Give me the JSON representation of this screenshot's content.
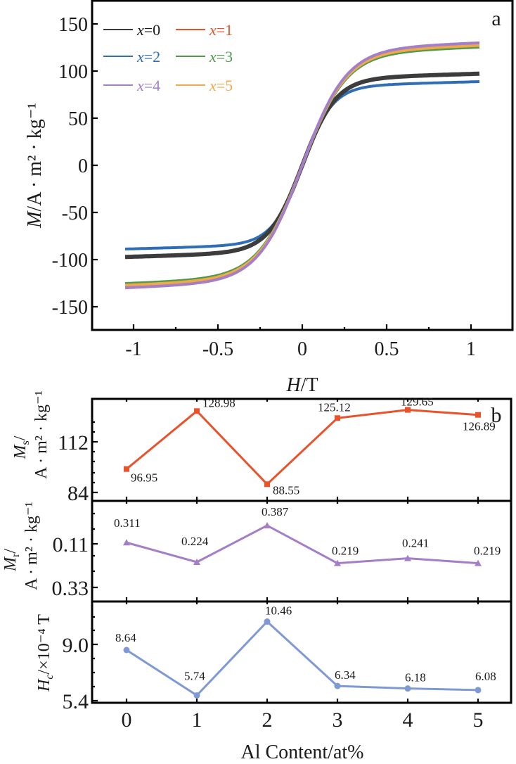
{
  "chart_data": [
    {
      "panel": "a",
      "type": "line",
      "title": "",
      "panel_label": "a",
      "xlabel_italic": "H",
      "xlabel_rest": "/T",
      "ylabel_italic": "M",
      "ylabel_rest": "/A · m² · kg⁻¹",
      "xlim": [
        -1.25,
        1.25
      ],
      "ylim": [
        -175,
        175
      ],
      "xticks": [
        -1,
        -0.5,
        0,
        0.5,
        1
      ],
      "xtick_labels": [
        "-1",
        "-0.5",
        "0",
        "0.5",
        "1"
      ],
      "yticks": [
        150,
        100,
        50,
        0,
        -50,
        -100,
        -150
      ],
      "ytick_labels": [
        "150",
        "100",
        "50",
        "0",
        "-50",
        "-100",
        "-150"
      ],
      "legend_position": "top-left",
      "x_range": [
        -1.05,
        1.05
      ],
      "series": [
        {
          "name": "x=0",
          "legend_var": "x",
          "legend_val": "=0",
          "color": "#3c3c3c",
          "Ms": 96.95,
          "knee": 0.2
        },
        {
          "name": "x=1",
          "legend_var": "x",
          "legend_val": "=1",
          "color": "#e8532b",
          "Ms": 128.98,
          "knee": 0.26
        },
        {
          "name": "x=2",
          "legend_var": "x",
          "legend_val": "=2",
          "color": "#2f6db5",
          "Ms": 88.55,
          "knee": 0.18
        },
        {
          "name": "x=3",
          "legend_var": "x",
          "legend_val": "=3",
          "color": "#4f9a4b",
          "Ms": 125.12,
          "knee": 0.26
        },
        {
          "name": "x=4",
          "legend_var": "x",
          "legend_val": "=4",
          "color": "#a47ec6",
          "Ms": 129.65,
          "knee": 0.26
        },
        {
          "name": "x=5",
          "legend_var": "x",
          "legend_val": "=5",
          "color": "#f0a94a",
          "Ms": 126.89,
          "knee": 0.26
        }
      ]
    },
    {
      "panel": "b",
      "type": "line",
      "panel_label": "b",
      "xlabel": "Al Content/at%",
      "categories": [
        0,
        1,
        2,
        3,
        4,
        5
      ],
      "xtick_labels": [
        "0",
        "1",
        "2",
        "3",
        "4",
        "5"
      ],
      "xlim": [
        -0.5,
        5.5
      ],
      "subplots": [
        {
          "name": "Ms",
          "ylabel_line1_italic": "M",
          "ylabel_line1_sub": "s",
          "ylabel_line1_rest": "/",
          "ylabel_line2": "A · m² · kg⁻¹",
          "color": "#e8532b",
          "marker": "square",
          "values": [
            96.95,
            128.98,
            88.55,
            125.12,
            129.65,
            126.89
          ],
          "labels": [
            "96.95",
            "128.98",
            "88.55",
            "125.12",
            "129.65",
            "126.89"
          ],
          "ylim": [
            82,
            140
          ],
          "yticks": [
            112,
            84
          ],
          "ytick_labels": [
            "112",
            "84"
          ]
        },
        {
          "name": "Mr",
          "ylabel_line1_italic": "M",
          "ylabel_line1_sub": "r",
          "ylabel_line1_rest": "/",
          "ylabel_line2": "A · m² · kg⁻¹",
          "color": "#a47ec6",
          "marker": "triangle",
          "values": [
            0.311,
            0.224,
            0.387,
            0.219,
            0.241,
            0.219
          ],
          "labels": [
            "0.311",
            "0.224",
            "0.387",
            "0.219",
            "0.241",
            "0.219"
          ],
          "ylim": [
            0.08,
            0.5
          ],
          "yticks": [
            "0.11",
            "0.33"
          ],
          "ytick_labels": [
            "0.11",
            "0.33"
          ]
        },
        {
          "name": "Hc",
          "ylabel_italic": "H",
          "ylabel_sub": "c",
          "ylabel_rest": "/×10⁻⁴ T",
          "color": "#7f99d4",
          "marker": "circle",
          "values": [
            8.64,
            5.74,
            10.46,
            6.34,
            6.18,
            6.08
          ],
          "labels": [
            "8.64",
            "5.74",
            "10.46",
            "6.34",
            "6.18",
            "6.08"
          ],
          "ylim": [
            5.25,
            11.7
          ],
          "yticks": [
            9.0,
            5.4
          ],
          "ytick_labels": [
            "9.0",
            "5.4"
          ]
        }
      ]
    }
  ]
}
